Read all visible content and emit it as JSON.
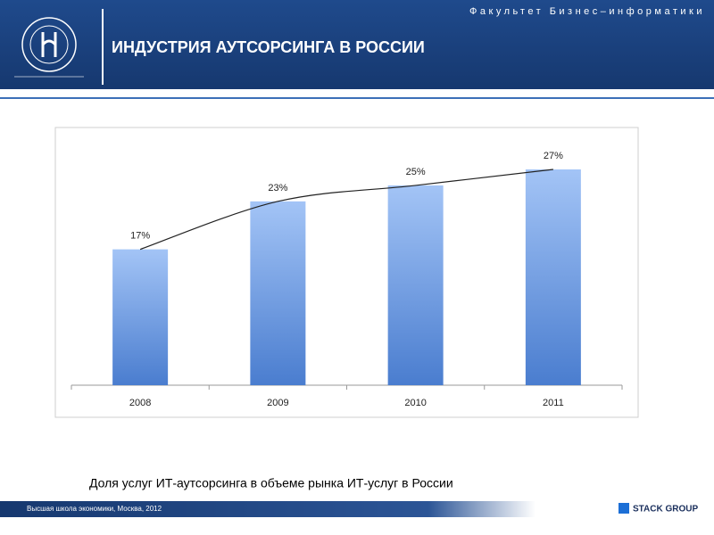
{
  "header": {
    "faculty": "Факультет Бизнес–информатики",
    "title": "ИНДУСТРИЯ АУТСОРСИНГА В РОССИИ"
  },
  "chart_data": {
    "type": "bar",
    "categories": [
      "2008",
      "2009",
      "2010",
      "2011"
    ],
    "values": [
      17,
      23,
      25,
      27
    ],
    "value_labels": [
      "17%",
      "23%",
      "25%",
      "27%"
    ],
    "color": "#5b8fd8"
  },
  "caption": "Доля услуг ИТ-аутсорсинга в объеме рынка ИТ-услуг в России",
  "footer": {
    "text": "Высшая школа экономики, Москва, 2012",
    "brand": "STACK GROUP"
  }
}
